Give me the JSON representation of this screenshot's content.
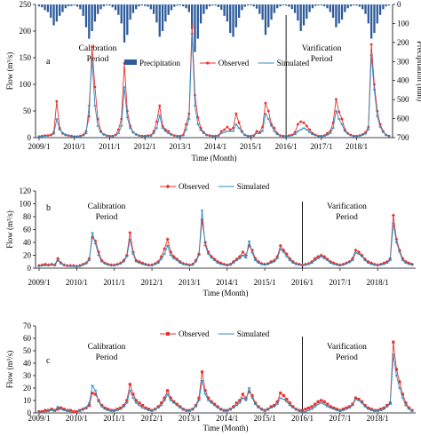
{
  "chart_data": [
    {
      "panel": "a",
      "type": "line",
      "xlabel": "Time (Month)",
      "ylabel": "Flow (m³/s)",
      "ylabel_right": "Precipitation (mm)",
      "ylim": [
        0,
        250
      ],
      "yticks": [
        0,
        50,
        100,
        150,
        200,
        250
      ],
      "ylim_right": [
        700,
        0
      ],
      "yticks_right": [
        0,
        100,
        200,
        300,
        400,
        500,
        600,
        700
      ],
      "x_tick_labels": [
        "2009/1",
        "2010/1",
        "2011/1",
        "2012/1",
        "2013/1",
        "2014/1",
        "2015/1",
        "2016/1",
        "2017/1",
        "2018/1"
      ],
      "annotations": {
        "calibration": "Calibration\nPeriod",
        "verification": "Varification\nPeriod"
      },
      "divider_month": 84,
      "legend": [
        "Precipitation",
        "Observed",
        "Simulated"
      ],
      "series": [
        {
          "name": "Observed",
          "color": "#e8312b",
          "marker": "circle",
          "values": [
            2,
            3,
            4,
            4,
            5,
            10,
            68,
            18,
            8,
            5,
            4,
            3,
            2,
            2,
            3,
            5,
            12,
            40,
            170,
            95,
            35,
            12,
            6,
            4,
            3,
            3,
            5,
            15,
            35,
            140,
            50,
            22,
            10,
            6,
            4,
            3,
            3,
            4,
            4,
            12,
            30,
            60,
            22,
            15,
            12,
            6,
            4,
            3,
            3,
            5,
            25,
            45,
            210,
            80,
            38,
            18,
            10,
            5,
            4,
            3,
            3,
            4,
            12,
            15,
            20,
            15,
            18,
            45,
            28,
            12,
            5,
            3,
            3,
            4,
            12,
            10,
            20,
            65,
            50,
            25,
            18,
            8,
            4,
            3,
            3,
            4,
            5,
            10,
            25,
            30,
            28,
            22,
            15,
            8,
            5,
            3,
            3,
            4,
            8,
            12,
            28,
            72,
            48,
            35,
            15,
            8,
            5,
            3,
            3,
            4,
            6,
            10,
            20,
            175,
            100,
            50,
            25,
            12,
            5,
            3
          ]
        },
        {
          "name": "Simulated",
          "color": "#2e8bc0",
          "marker": "dash",
          "values": [
            2,
            3,
            3,
            4,
            4,
            7,
            35,
            15,
            9,
            6,
            4,
            3,
            2,
            2,
            3,
            4,
            8,
            60,
            145,
            60,
            22,
            10,
            6,
            4,
            3,
            3,
            4,
            8,
            22,
            95,
            38,
            18,
            10,
            6,
            4,
            3,
            3,
            3,
            4,
            8,
            18,
            42,
            18,
            12,
            8,
            5,
            4,
            3,
            3,
            4,
            15,
            35,
            195,
            60,
            25,
            14,
            8,
            5,
            4,
            3,
            3,
            4,
            8,
            10,
            12,
            12,
            12,
            25,
            18,
            10,
            5,
            3,
            3,
            4,
            8,
            8,
            12,
            45,
            35,
            22,
            12,
            6,
            4,
            3,
            3,
            3,
            4,
            6,
            12,
            15,
            18,
            15,
            10,
            6,
            4,
            3,
            3,
            3,
            5,
            8,
            18,
            50,
            35,
            25,
            12,
            7,
            4,
            3,
            3,
            3,
            5,
            7,
            15,
            155,
            90,
            40,
            20,
            10,
            5,
            3
          ]
        },
        {
          "name": "Precipitation",
          "color": "#2e5b9b",
          "type": "bar",
          "axis": "right",
          "values": [
            10,
            15,
            30,
            40,
            70,
            110,
            90,
            60,
            40,
            20,
            10,
            8,
            5,
            12,
            25,
            60,
            120,
            180,
            140,
            90,
            50,
            25,
            10,
            5,
            6,
            15,
            30,
            55,
            100,
            200,
            160,
            80,
            45,
            25,
            10,
            5,
            8,
            12,
            25,
            50,
            95,
            170,
            140,
            90,
            55,
            30,
            12,
            6,
            5,
            10,
            20,
            40,
            130,
            250,
            180,
            100,
            50,
            25,
            10,
            5,
            6,
            14,
            28,
            60,
            90,
            150,
            170,
            120,
            70,
            30,
            12,
            6,
            5,
            10,
            22,
            50,
            80,
            160,
            120,
            80,
            45,
            20,
            10,
            5,
            6,
            12,
            24,
            45,
            85,
            140,
            110,
            75,
            40,
            20,
            8,
            5,
            5,
            10,
            20,
            40,
            70,
            120,
            100,
            80,
            40,
            20,
            10,
            5,
            6,
            12,
            25,
            50,
            100,
            180,
            150,
            100,
            55,
            25,
            10,
            5
          ]
        }
      ]
    },
    {
      "panel": "b",
      "type": "line",
      "xlabel": "Time (Month)",
      "ylabel": "Flow (m³/s)",
      "ylim": [
        0,
        120
      ],
      "yticks": [
        0,
        20,
        40,
        60,
        80,
        100,
        120
      ],
      "x_tick_labels": [
        "2009/1",
        "2010/1",
        "2011/1",
        "2012/1",
        "2013/1",
        "2014/1",
        "2015/1",
        "2016/1",
        "2017/1",
        "2018/1"
      ],
      "annotations": {
        "calibration": "Calibration\nPeriod",
        "verification": "Varification\nPeriod"
      },
      "divider_month": 84,
      "legend": [
        "Observed",
        "Simulated"
      ],
      "series": [
        {
          "name": "Observed",
          "color": "#e8312b",
          "marker": "diamond",
          "values": [
            4,
            5,
            6,
            5,
            6,
            5,
            15,
            8,
            5,
            4,
            4,
            4,
            3,
            4,
            6,
            8,
            15,
            48,
            42,
            25,
            12,
            8,
            6,
            5,
            5,
            6,
            8,
            12,
            20,
            55,
            25,
            12,
            10,
            8,
            6,
            5,
            5,
            7,
            10,
            18,
            30,
            45,
            25,
            18,
            14,
            10,
            7,
            6,
            5,
            6,
            12,
            22,
            75,
            40,
            25,
            18,
            14,
            10,
            8,
            6,
            5,
            6,
            10,
            14,
            18,
            25,
            20,
            35,
            28,
            15,
            10,
            7,
            6,
            7,
            10,
            12,
            18,
            35,
            28,
            22,
            15,
            10,
            7,
            6,
            5,
            6,
            7,
            10,
            15,
            18,
            20,
            18,
            14,
            10,
            8,
            6,
            5,
            6,
            8,
            10,
            15,
            28,
            25,
            20,
            14,
            10,
            8,
            6,
            5,
            6,
            8,
            10,
            15,
            82,
            45,
            28,
            15,
            10,
            8,
            6
          ]
        },
        {
          "name": "Simulated",
          "color": "#2e8bc0",
          "marker": "dash",
          "values": [
            3,
            4,
            4,
            4,
            5,
            4,
            12,
            7,
            5,
            4,
            3,
            3,
            3,
            3,
            5,
            7,
            12,
            55,
            38,
            20,
            10,
            7,
            5,
            4,
            4,
            5,
            7,
            10,
            18,
            45,
            22,
            10,
            8,
            6,
            5,
            4,
            4,
            6,
            8,
            14,
            22,
            35,
            20,
            15,
            12,
            8,
            6,
            5,
            4,
            5,
            10,
            20,
            90,
            35,
            22,
            16,
            12,
            8,
            6,
            5,
            4,
            5,
            8,
            12,
            15,
            20,
            16,
            42,
            24,
            12,
            8,
            6,
            5,
            6,
            8,
            10,
            15,
            30,
            25,
            18,
            12,
            8,
            6,
            5,
            4,
            5,
            6,
            8,
            12,
            15,
            18,
            15,
            12,
            8,
            6,
            5,
            4,
            5,
            7,
            9,
            12,
            24,
            22,
            18,
            12,
            8,
            6,
            5,
            4,
            5,
            6,
            8,
            12,
            70,
            40,
            25,
            12,
            8,
            6,
            5
          ]
        }
      ]
    },
    {
      "panel": "c",
      "type": "line",
      "xlabel": "Time (Month)",
      "ylabel": "Flow (m³/s)",
      "ylim": [
        0,
        70
      ],
      "yticks": [
        0,
        10,
        20,
        30,
        40,
        50,
        60,
        70
      ],
      "x_tick_labels": [
        "2009/1",
        "2010/1",
        "2011/1",
        "2012/1",
        "2013/1",
        "2014/1",
        "2015/1",
        "2016/1",
        "2017/1",
        "2018/1"
      ],
      "annotations": {
        "calibration": "Calibration\nPeriod",
        "verification": "Varification\nPeriod"
      },
      "divider_month": 84,
      "legend": [
        "Observed",
        "Simulated"
      ],
      "series": [
        {
          "name": "Observed",
          "color": "#e8312b",
          "marker": "square",
          "values": [
            1,
            1,
            2,
            2,
            3,
            2,
            3,
            4,
            3,
            2,
            2,
            1,
            1,
            2,
            3,
            4,
            6,
            16,
            15,
            10,
            6,
            4,
            3,
            2,
            2,
            3,
            4,
            6,
            10,
            23,
            15,
            10,
            8,
            6,
            4,
            3,
            2,
            3,
            5,
            8,
            12,
            18,
            12,
            9,
            7,
            5,
            3,
            2,
            2,
            3,
            6,
            12,
            33,
            18,
            12,
            9,
            7,
            5,
            3,
            2,
            2,
            3,
            5,
            8,
            10,
            15,
            12,
            17,
            14,
            8,
            5,
            3,
            2,
            3,
            5,
            6,
            9,
            16,
            14,
            11,
            8,
            5,
            3,
            2,
            2,
            3,
            4,
            5,
            7,
            9,
            10,
            9,
            7,
            5,
            4,
            3,
            2,
            3,
            4,
            5,
            7,
            12,
            11,
            9,
            6,
            4,
            3,
            2,
            2,
            3,
            4,
            6,
            8,
            57,
            35,
            25,
            15,
            8,
            4,
            2
          ]
        },
        {
          "name": "Simulated",
          "color": "#2e8bc0",
          "marker": "dash",
          "values": [
            0,
            1,
            1,
            2,
            2,
            2,
            5,
            3,
            2,
            2,
            1,
            1,
            1,
            2,
            3,
            4,
            8,
            22,
            18,
            9,
            5,
            3,
            2,
            2,
            2,
            2,
            3,
            5,
            8,
            18,
            12,
            8,
            6,
            4,
            3,
            2,
            2,
            3,
            4,
            6,
            10,
            15,
            10,
            8,
            6,
            4,
            3,
            2,
            2,
            3,
            5,
            10,
            26,
            15,
            10,
            8,
            6,
            4,
            3,
            2,
            2,
            3,
            4,
            6,
            8,
            12,
            10,
            20,
            12,
            7,
            4,
            3,
            2,
            3,
            4,
            5,
            7,
            12,
            11,
            9,
            6,
            4,
            3,
            2,
            0,
            1,
            2,
            3,
            5,
            7,
            8,
            7,
            5,
            4,
            3,
            2,
            2,
            2,
            3,
            4,
            6,
            11,
            10,
            8,
            5,
            3,
            2,
            2,
            2,
            2,
            3,
            5,
            7,
            47,
            30,
            20,
            12,
            6,
            3,
            2
          ]
        }
      ]
    }
  ]
}
